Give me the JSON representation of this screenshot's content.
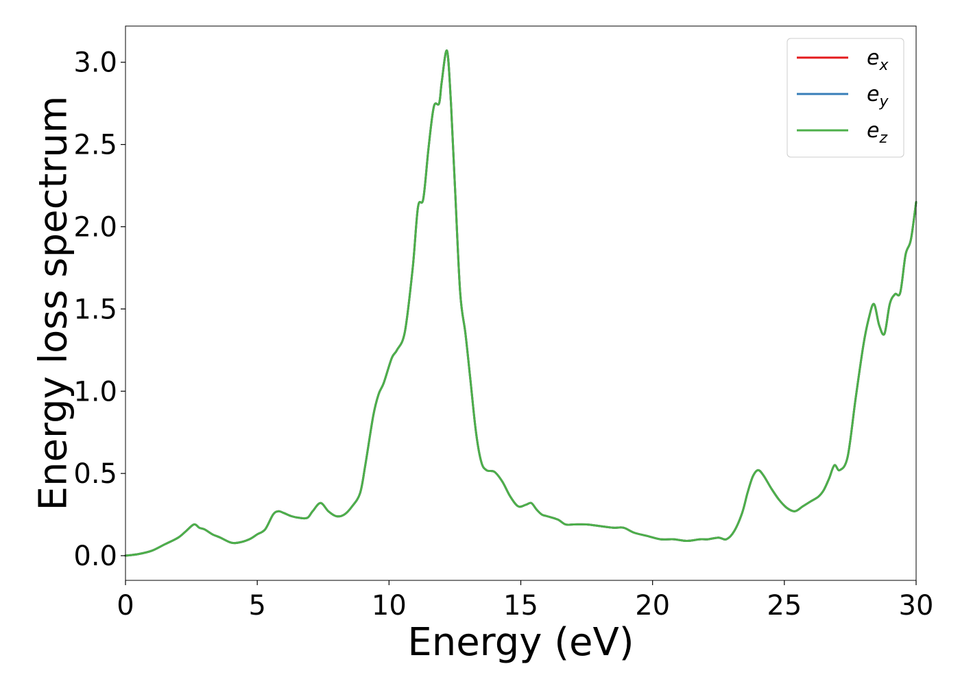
{
  "chart_data": {
    "type": "line",
    "title": "",
    "xlabel": "Energy (eV)",
    "ylabel": "Energy loss spectrum",
    "xlim": [
      0,
      30
    ],
    "ylim": [
      -0.15,
      3.22
    ],
    "xticks": [
      0,
      5,
      10,
      15,
      20,
      25,
      30
    ],
    "xtick_labels": [
      "0",
      "5",
      "10",
      "15",
      "20",
      "25",
      "30"
    ],
    "yticks": [
      0.0,
      0.5,
      1.0,
      1.5,
      2.0,
      2.5,
      3.0
    ],
    "ytick_labels": [
      "0.0",
      "0.5",
      "1.0",
      "1.5",
      "2.0",
      "2.5",
      "3.0"
    ],
    "grid": false,
    "legend_position": "top-right",
    "x": [
      0,
      0.5,
      1.0,
      1.5,
      2.0,
      2.3,
      2.6,
      2.8,
      3.0,
      3.3,
      3.6,
      4.0,
      4.3,
      4.7,
      5.0,
      5.3,
      5.6,
      5.8,
      6.0,
      6.3,
      6.6,
      6.9,
      7.1,
      7.4,
      7.7,
      8.0,
      8.3,
      8.6,
      8.9,
      9.1,
      9.4,
      9.6,
      9.8,
      10.1,
      10.3,
      10.6,
      10.9,
      11.1,
      11.3,
      11.5,
      11.7,
      11.9,
      12.0,
      12.2,
      12.35,
      12.5,
      12.7,
      12.9,
      13.1,
      13.3,
      13.5,
      13.7,
      14.0,
      14.3,
      14.6,
      14.9,
      15.2,
      15.4,
      15.6,
      15.8,
      16.0,
      16.4,
      16.7,
      17.0,
      17.5,
      18.0,
      18.5,
      18.9,
      19.3,
      19.8,
      20.3,
      20.8,
      21.3,
      21.8,
      22.1,
      22.5,
      22.8,
      23.1,
      23.4,
      23.6,
      23.8,
      24.0,
      24.2,
      24.5,
      24.8,
      25.1,
      25.4,
      25.7,
      26.0,
      26.3,
      26.5,
      26.7,
      26.9,
      27.1,
      27.4,
      27.7,
      28.0,
      28.2,
      28.4,
      28.6,
      28.8,
      29.0,
      29.2,
      29.4,
      29.6,
      29.8,
      30.0
    ],
    "series": [
      {
        "name": "e_x",
        "color": "#e41a1c",
        "y": [
          0.0,
          0.01,
          0.03,
          0.07,
          0.11,
          0.15,
          0.19,
          0.17,
          0.16,
          0.13,
          0.11,
          0.08,
          0.08,
          0.1,
          0.13,
          0.16,
          0.25,
          0.27,
          0.26,
          0.24,
          0.23,
          0.23,
          0.27,
          0.32,
          0.27,
          0.24,
          0.25,
          0.3,
          0.38,
          0.55,
          0.85,
          0.98,
          1.05,
          1.2,
          1.25,
          1.36,
          1.75,
          2.12,
          2.17,
          2.48,
          2.73,
          2.75,
          2.88,
          3.07,
          2.75,
          2.25,
          1.6,
          1.35,
          1.05,
          0.75,
          0.57,
          0.52,
          0.51,
          0.45,
          0.36,
          0.3,
          0.31,
          0.32,
          0.28,
          0.25,
          0.24,
          0.22,
          0.19,
          0.19,
          0.19,
          0.18,
          0.17,
          0.17,
          0.14,
          0.12,
          0.1,
          0.1,
          0.09,
          0.1,
          0.1,
          0.11,
          0.1,
          0.15,
          0.26,
          0.38,
          0.48,
          0.52,
          0.49,
          0.41,
          0.34,
          0.29,
          0.27,
          0.3,
          0.33,
          0.36,
          0.4,
          0.47,
          0.55,
          0.52,
          0.6,
          0.95,
          1.28,
          1.44,
          1.53,
          1.4,
          1.35,
          1.53,
          1.59,
          1.6,
          1.83,
          1.92,
          2.15
        ]
      },
      {
        "name": "e_y",
        "color": "#377eb8",
        "y": [
          0.0,
          0.01,
          0.03,
          0.07,
          0.11,
          0.15,
          0.19,
          0.17,
          0.16,
          0.13,
          0.11,
          0.08,
          0.08,
          0.1,
          0.13,
          0.16,
          0.25,
          0.27,
          0.26,
          0.24,
          0.23,
          0.23,
          0.27,
          0.32,
          0.27,
          0.24,
          0.25,
          0.3,
          0.38,
          0.55,
          0.85,
          0.98,
          1.05,
          1.2,
          1.25,
          1.36,
          1.75,
          2.12,
          2.17,
          2.48,
          2.73,
          2.75,
          2.88,
          3.07,
          2.75,
          2.25,
          1.6,
          1.35,
          1.05,
          0.75,
          0.57,
          0.52,
          0.51,
          0.45,
          0.36,
          0.3,
          0.31,
          0.32,
          0.28,
          0.25,
          0.24,
          0.22,
          0.19,
          0.19,
          0.19,
          0.18,
          0.17,
          0.17,
          0.14,
          0.12,
          0.1,
          0.1,
          0.09,
          0.1,
          0.1,
          0.11,
          0.1,
          0.15,
          0.26,
          0.38,
          0.48,
          0.52,
          0.49,
          0.41,
          0.34,
          0.29,
          0.27,
          0.3,
          0.33,
          0.36,
          0.4,
          0.47,
          0.55,
          0.52,
          0.6,
          0.95,
          1.28,
          1.44,
          1.53,
          1.4,
          1.35,
          1.53,
          1.59,
          1.6,
          1.83,
          1.92,
          2.15
        ]
      },
      {
        "name": "e_z",
        "color": "#4daf4a",
        "y": [
          0.0,
          0.01,
          0.03,
          0.07,
          0.11,
          0.15,
          0.19,
          0.17,
          0.16,
          0.13,
          0.11,
          0.08,
          0.08,
          0.1,
          0.13,
          0.16,
          0.25,
          0.27,
          0.26,
          0.24,
          0.23,
          0.23,
          0.27,
          0.32,
          0.27,
          0.24,
          0.25,
          0.3,
          0.38,
          0.55,
          0.85,
          0.98,
          1.05,
          1.2,
          1.25,
          1.36,
          1.75,
          2.12,
          2.17,
          2.48,
          2.73,
          2.75,
          2.88,
          3.07,
          2.75,
          2.25,
          1.6,
          1.35,
          1.05,
          0.75,
          0.57,
          0.52,
          0.51,
          0.45,
          0.36,
          0.3,
          0.31,
          0.32,
          0.28,
          0.25,
          0.24,
          0.22,
          0.19,
          0.19,
          0.19,
          0.18,
          0.17,
          0.17,
          0.14,
          0.12,
          0.1,
          0.1,
          0.09,
          0.1,
          0.1,
          0.11,
          0.1,
          0.15,
          0.26,
          0.38,
          0.48,
          0.52,
          0.49,
          0.41,
          0.34,
          0.29,
          0.27,
          0.3,
          0.33,
          0.36,
          0.4,
          0.47,
          0.55,
          0.52,
          0.6,
          0.95,
          1.28,
          1.44,
          1.53,
          1.4,
          1.35,
          1.53,
          1.59,
          1.6,
          1.83,
          1.92,
          2.15
        ]
      }
    ],
    "legend": [
      {
        "base": "e",
        "sub": "x",
        "color": "#e41a1c"
      },
      {
        "base": "e",
        "sub": "y",
        "color": "#377eb8"
      },
      {
        "base": "e",
        "sub": "z",
        "color": "#4daf4a"
      }
    ]
  }
}
